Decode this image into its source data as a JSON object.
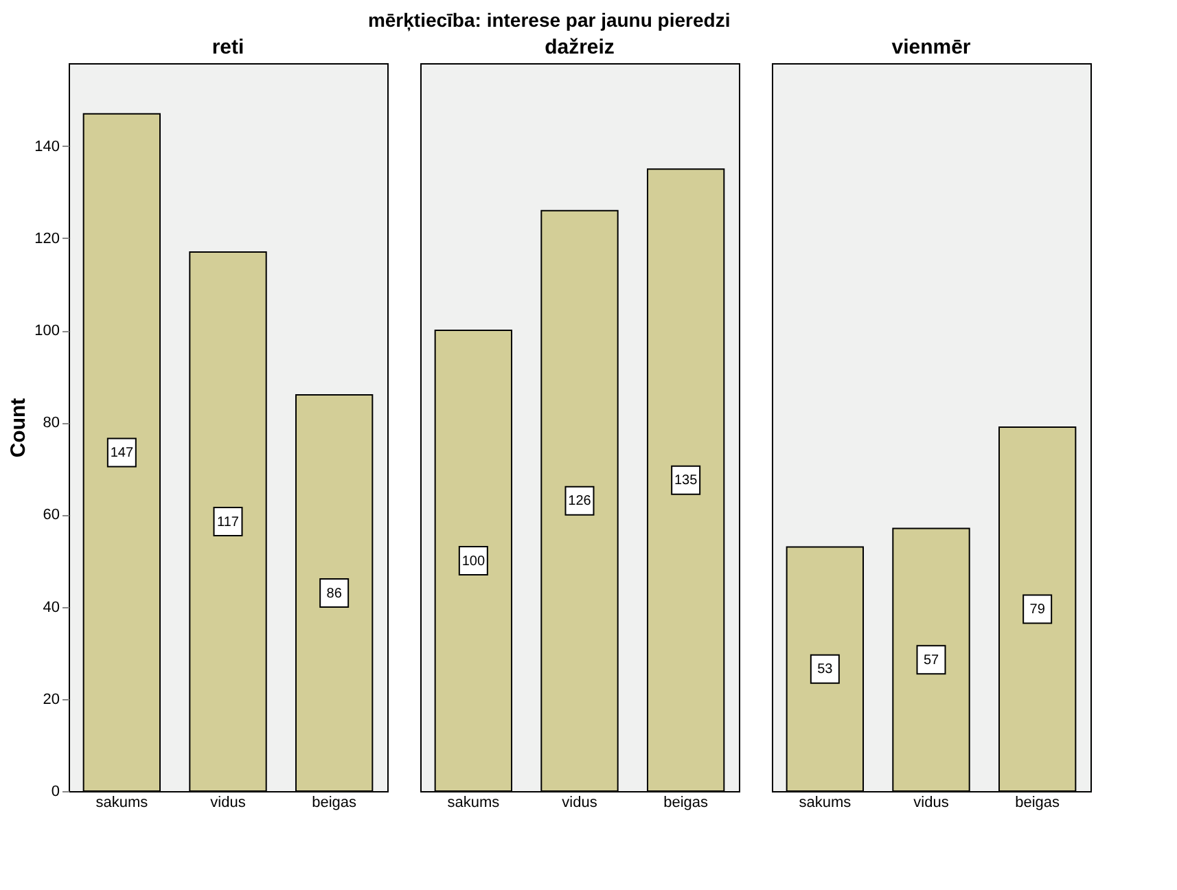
{
  "chart_data": [
    {
      "type": "bar",
      "subtitle": "reti",
      "ylabel": "Count",
      "categories": [
        "sakums",
        "vidus",
        "beigas"
      ],
      "values": [
        147,
        117,
        86
      ],
      "color": "#d3ce97",
      "ylim": [
        0,
        158
      ],
      "yticks": [
        0,
        20,
        40,
        60,
        80,
        100,
        120,
        140
      ],
      "data_labels": true,
      "grid": false
    },
    {
      "type": "bar",
      "title": "mērķtiecība: interese par jaunu pieredzi",
      "subtitle": "dažreiz",
      "categories": [
        "sakums",
        "vidus",
        "beigas"
      ],
      "values": [
        100,
        126,
        135
      ],
      "color": "#d3ce97",
      "ylim": [
        0,
        158
      ],
      "yticks": [
        0,
        20,
        40,
        60,
        80,
        100,
        120,
        140
      ],
      "data_labels": true,
      "grid": false,
      "tick_labels": "x"
    },
    {
      "type": "bar",
      "subtitle": "vienmēr",
      "categories": [
        "sakums",
        "vidus",
        "beigas"
      ],
      "values": [
        53,
        57,
        79
      ],
      "color": "#d3ce97",
      "ylim": [
        0,
        158
      ],
      "yticks": [
        0,
        20,
        40,
        60,
        80,
        100,
        120,
        140
      ],
      "data_labels": true,
      "grid": false,
      "tick_labels": "x"
    }
  ]
}
